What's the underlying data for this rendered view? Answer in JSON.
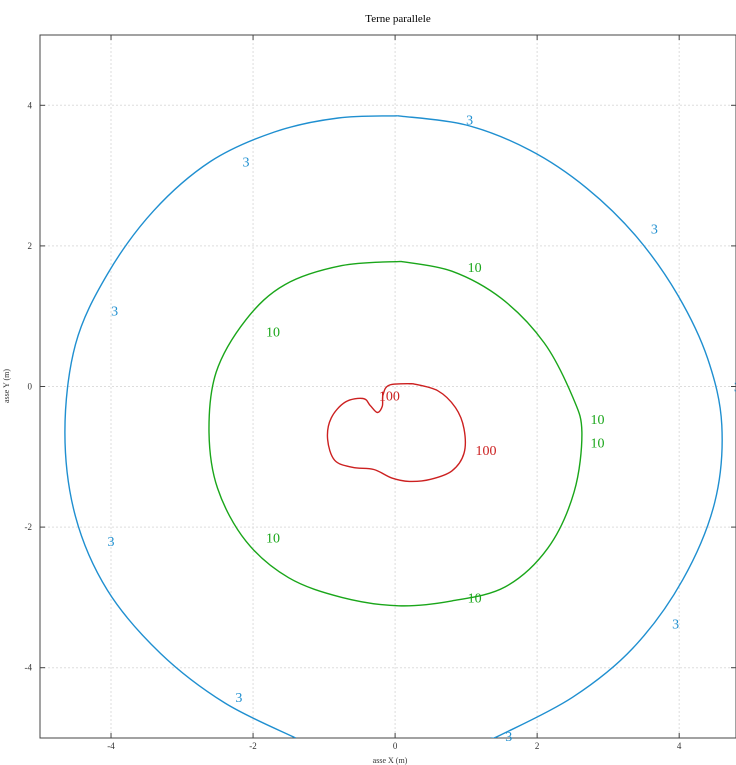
{
  "chart_data": {
    "type": "contour",
    "title": "Terne parallele",
    "xlabel": "asse X (m)",
    "ylabel": "asse Y (m)",
    "xlim": [
      -5,
      4.8
    ],
    "ylim": [
      -5,
      5
    ],
    "xticks": [
      -4,
      -2,
      0,
      2,
      4
    ],
    "yticks": [
      -4,
      -2,
      0,
      2,
      4
    ],
    "xtick_labels": [
      "-4",
      "-2",
      "0",
      "2",
      "4"
    ],
    "ytick_labels": [
      "-4",
      "-2",
      "0",
      "2",
      "4"
    ],
    "grid": true,
    "series": [
      {
        "level_label": "3",
        "color": "#1f8fd0",
        "points": [
          [
            0.04,
            3.85
          ],
          [
            1.0,
            3.72
          ],
          [
            1.9,
            3.36
          ],
          [
            2.7,
            2.82
          ],
          [
            3.4,
            2.13
          ],
          [
            3.98,
            1.3
          ],
          [
            4.4,
            0.4
          ],
          [
            4.6,
            -0.55
          ],
          [
            4.5,
            -1.65
          ],
          [
            4.05,
            -2.75
          ],
          [
            3.35,
            -3.72
          ],
          [
            2.5,
            -4.42
          ],
          [
            1.5,
            -4.95
          ],
          [
            1.35,
            -5.0
          ]
        ],
        "points_b": [
          [
            -1.4,
            -5.0
          ],
          [
            -2.4,
            -4.5
          ],
          [
            -3.3,
            -3.8
          ],
          [
            -4.05,
            -2.9
          ],
          [
            -4.5,
            -1.85
          ],
          [
            -4.65,
            -0.65
          ],
          [
            -4.5,
            0.6
          ],
          [
            -4.05,
            1.6
          ],
          [
            -3.4,
            2.5
          ],
          [
            -2.6,
            3.2
          ],
          [
            -1.7,
            3.62
          ],
          [
            -0.8,
            3.82
          ],
          [
            0.04,
            3.85
          ]
        ],
        "labels": [
          {
            "text": "3",
            "x": 1.05,
            "y": 3.8
          },
          {
            "text": "3",
            "x": -2.1,
            "y": 3.2
          },
          {
            "text": "3",
            "x": 3.65,
            "y": 2.25
          },
          {
            "text": "3",
            "x": -3.95,
            "y": 1.08
          },
          {
            "text": "3",
            "x": 4.82,
            "y": 0.0
          },
          {
            "text": "3",
            "x": -4.0,
            "y": -2.2
          },
          {
            "text": "3",
            "x": 3.95,
            "y": -3.37
          },
          {
            "text": "3",
            "x": -2.2,
            "y": -4.42
          },
          {
            "text": "3",
            "x": 1.6,
            "y": -4.97
          }
        ]
      },
      {
        "level_label": "10",
        "color": "#1aa61a",
        "points": [
          [
            0.08,
            1.78
          ],
          [
            0.8,
            1.64
          ],
          [
            1.5,
            1.25
          ],
          [
            2.1,
            0.62
          ],
          [
            2.5,
            -0.15
          ],
          [
            2.63,
            -0.65
          ],
          [
            2.52,
            -1.5
          ],
          [
            2.15,
            -2.3
          ],
          [
            1.55,
            -2.85
          ],
          [
            0.8,
            -3.05
          ],
          [
            0.05,
            -3.12
          ],
          [
            -0.75,
            -3.0
          ],
          [
            -1.5,
            -2.72
          ],
          [
            -2.1,
            -2.2
          ],
          [
            -2.5,
            -1.45
          ],
          [
            -2.62,
            -0.65
          ],
          [
            -2.52,
            0.2
          ],
          [
            -2.1,
            0.95
          ],
          [
            -1.55,
            1.45
          ],
          [
            -0.75,
            1.72
          ],
          [
            0.08,
            1.78
          ]
        ],
        "labels": [
          {
            "text": "10",
            "x": 1.12,
            "y": 1.7
          },
          {
            "text": "10",
            "x": -1.72,
            "y": 0.78
          },
          {
            "text": "10",
            "x": 2.85,
            "y": -0.46
          },
          {
            "text": "10",
            "x": 2.85,
            "y": -0.8
          },
          {
            "text": "10",
            "x": -1.72,
            "y": -2.15
          },
          {
            "text": "10",
            "x": 1.12,
            "y": -3.0
          }
        ]
      },
      {
        "level_label": "100",
        "color": "#cc2020",
        "points": [
          [
            0.25,
            0.04
          ],
          [
            0.6,
            -0.06
          ],
          [
            0.85,
            -0.3
          ],
          [
            0.97,
            -0.6
          ],
          [
            0.97,
            -0.95
          ],
          [
            0.8,
            -1.2
          ],
          [
            0.5,
            -1.32
          ],
          [
            0.2,
            -1.35
          ],
          [
            -0.05,
            -1.3
          ],
          [
            -0.3,
            -1.18
          ],
          [
            -0.6,
            -1.15
          ],
          [
            -0.85,
            -1.05
          ],
          [
            -0.95,
            -0.75
          ],
          [
            -0.9,
            -0.45
          ],
          [
            -0.7,
            -0.22
          ],
          [
            -0.45,
            -0.17
          ],
          [
            -0.35,
            -0.27
          ],
          [
            -0.25,
            -0.37
          ],
          [
            -0.18,
            -0.28
          ],
          [
            -0.17,
            -0.12
          ],
          [
            -0.08,
            0.02
          ],
          [
            0.25,
            0.04
          ]
        ],
        "labels": [
          {
            "text": "100",
            "x": -0.08,
            "y": -0.13
          },
          {
            "text": "100",
            "x": 1.28,
            "y": -0.9
          }
        ]
      }
    ]
  }
}
